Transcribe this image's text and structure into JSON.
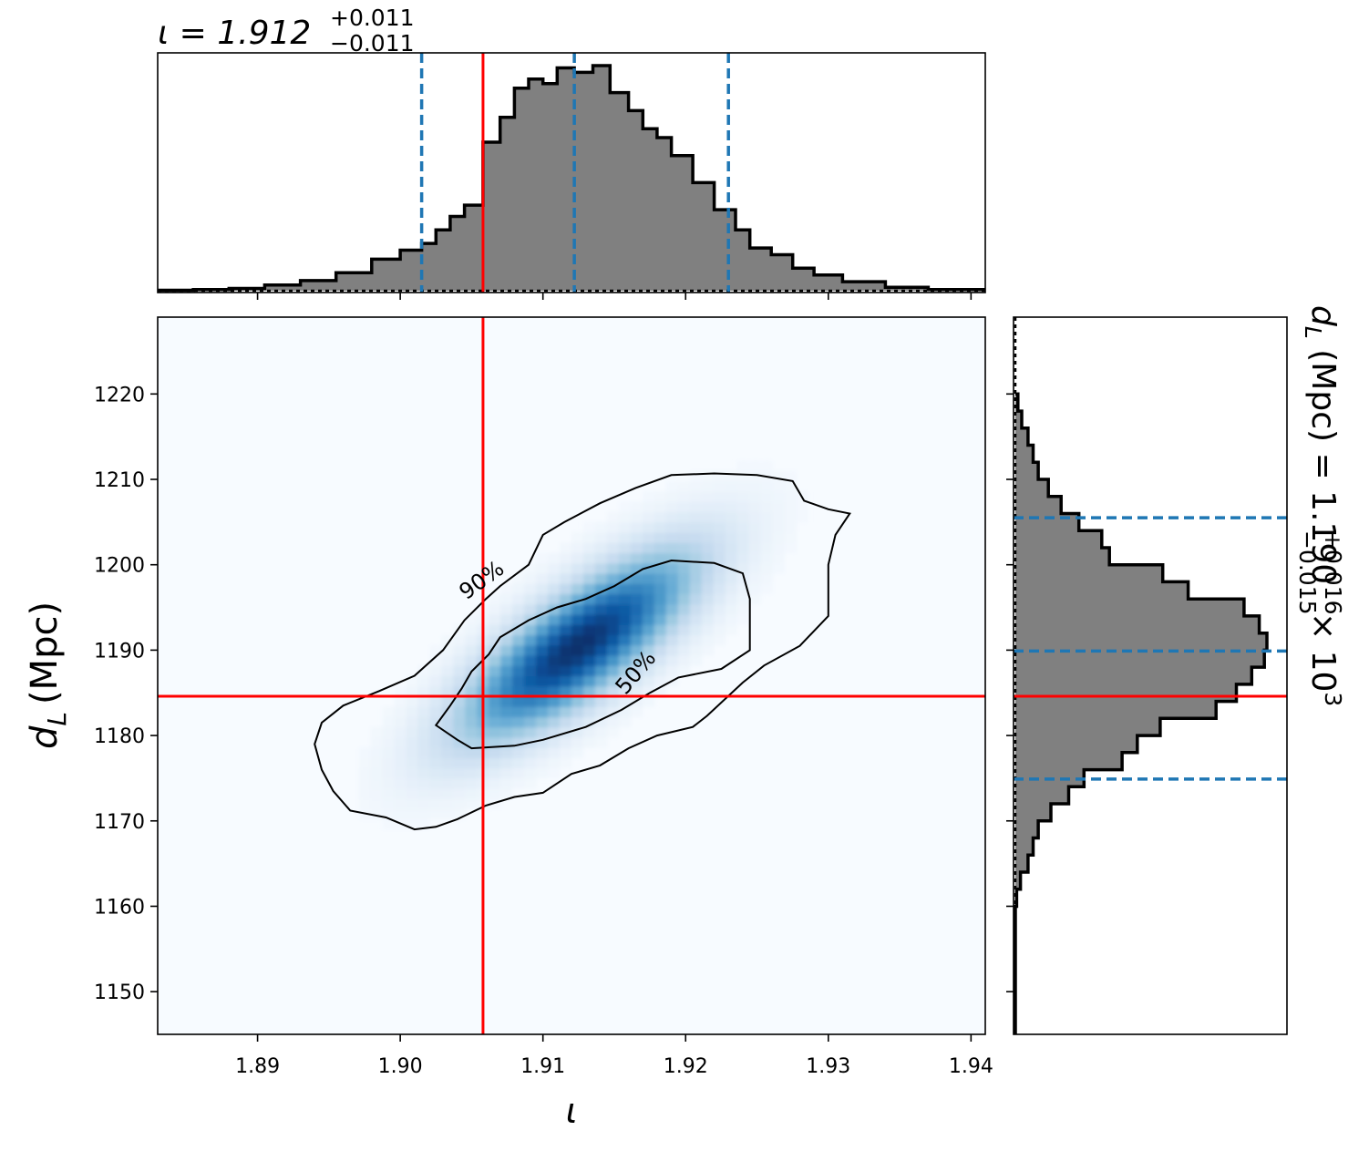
{
  "chart_data": [
    {
      "type": "heatmap",
      "panel": "joint",
      "xlabel": "ι",
      "ylabel_main": "d",
      "ylabel_sub": "L",
      "ylabel_unit": "(Mpc)",
      "xlim": [
        1.883,
        1.941
      ],
      "ylim": [
        1145,
        1229
      ],
      "x_ticks": [
        1.89,
        1.9,
        1.91,
        1.92,
        1.93,
        1.94
      ],
      "x_tick_labels": [
        "1.89",
        "1.90",
        "1.91",
        "1.92",
        "1.93",
        "1.94"
      ],
      "y_ticks": [
        1150,
        1160,
        1170,
        1180,
        1190,
        1200,
        1210,
        1220
      ],
      "y_tick_labels": [
        "1150",
        "1160",
        "1170",
        "1180",
        "1190",
        "1200",
        "1210",
        "1220"
      ],
      "density_peak": {
        "x": 1.9125,
        "y": 1190.5
      },
      "colormap": "Blues",
      "contour_labels": [
        "90%",
        "50%"
      ],
      "contour_50": [
        [
          1.9225,
          1187.8
        ],
        [
          1.9195,
          1186.8
        ],
        [
          1.9175,
          1185.0
        ],
        [
          1.9155,
          1183.0
        ],
        [
          1.913,
          1181.0
        ],
        [
          1.91,
          1179.5
        ],
        [
          1.908,
          1178.8
        ],
        [
          1.905,
          1178.5
        ],
        [
          1.904,
          1179.5
        ],
        [
          1.9025,
          1181.2
        ],
        [
          1.9035,
          1183.5
        ],
        [
          1.9043,
          1185.5
        ],
        [
          1.905,
          1187.5
        ],
        [
          1.9062,
          1189.5
        ],
        [
          1.907,
          1191.5
        ],
        [
          1.909,
          1193.5
        ],
        [
          1.911,
          1195.0
        ],
        [
          1.913,
          1196.0
        ],
        [
          1.915,
          1197.5
        ],
        [
          1.917,
          1199.5
        ],
        [
          1.919,
          1200.5
        ],
        [
          1.922,
          1200.2
        ],
        [
          1.924,
          1199.0
        ],
        [
          1.9245,
          1196.0
        ],
        [
          1.9245,
          1193.0
        ],
        [
          1.9245,
          1190.0
        ]
      ],
      "contour_90": [
        [
          1.93,
          1194.0
        ],
        [
          1.928,
          1190.5
        ],
        [
          1.9255,
          1188.2
        ],
        [
          1.924,
          1186.2
        ],
        [
          1.9215,
          1182.3
        ],
        [
          1.9205,
          1181.0
        ],
        [
          1.918,
          1180.0
        ],
        [
          1.916,
          1178.5
        ],
        [
          1.914,
          1176.5
        ],
        [
          1.912,
          1175.5
        ],
        [
          1.91,
          1173.3
        ],
        [
          1.908,
          1172.8
        ],
        [
          1.906,
          1171.8
        ],
        [
          1.904,
          1170.2
        ],
        [
          1.9025,
          1169.3
        ],
        [
          1.901,
          1169.0
        ],
        [
          1.899,
          1170.4
        ],
        [
          1.8965,
          1171.2
        ],
        [
          1.8953,
          1173.5
        ],
        [
          1.8945,
          1176.0
        ],
        [
          1.894,
          1179.0
        ],
        [
          1.8945,
          1181.5
        ],
        [
          1.896,
          1183.5
        ],
        [
          1.8985,
          1185.2
        ],
        [
          1.901,
          1187.0
        ],
        [
          1.903,
          1190.0
        ],
        [
          1.9045,
          1193.5
        ],
        [
          1.906,
          1196.0
        ],
        [
          1.907,
          1197.5
        ],
        [
          1.909,
          1200.0
        ],
        [
          1.91,
          1203.5
        ],
        [
          1.9115,
          1205.0
        ],
        [
          1.914,
          1207.2
        ],
        [
          1.9165,
          1209.0
        ],
        [
          1.919,
          1210.5
        ],
        [
          1.922,
          1210.7
        ],
        [
          1.925,
          1210.5
        ],
        [
          1.9275,
          1209.8
        ],
        [
          1.9283,
          1207.5
        ],
        [
          1.93,
          1206.5
        ],
        [
          1.9315,
          1206.0
        ],
        [
          1.9305,
          1203.5
        ],
        [
          1.93,
          1200.0
        ],
        [
          1.93,
          1197.0
        ]
      ],
      "truth": {
        "x": 1.9058,
        "y": 1184.6
      },
      "truth_color": "#ff0000",
      "contour_color": "#000000"
    },
    {
      "type": "bar",
      "panel": "marginal-x",
      "title_main": "ι = 1.912",
      "title_sup": "+0.011",
      "title_sub": "−0.011",
      "xlim": [
        1.883,
        1.941
      ],
      "bin_edges": [
        1.883,
        1.8855,
        1.888,
        1.8905,
        1.893,
        1.8955,
        1.898,
        1.9,
        1.9015,
        1.9025,
        1.9035,
        1.9045,
        1.9058,
        1.907,
        1.908,
        1.909,
        1.91,
        1.911,
        1.9122,
        1.9135,
        1.9147,
        1.916,
        1.917,
        1.918,
        1.919,
        1.9205,
        1.922,
        1.9235,
        1.9245,
        1.926,
        1.9275,
        1.929,
        1.931,
        1.934,
        1.937,
        1.941
      ],
      "values": [
        0.2,
        0.5,
        1.0,
        2.5,
        4.5,
        8.0,
        14.0,
        18.0,
        21.0,
        27.0,
        33.0,
        38.0,
        66.0,
        77.0,
        90.0,
        94.0,
        92.0,
        99.0,
        97.0,
        100.0,
        88.0,
        80.0,
        72.0,
        68.0,
        60.0,
        48.0,
        36.0,
        27.0,
        19.0,
        16.0,
        10.0,
        7.0,
        4.0,
        1.5,
        0.5
      ],
      "quantiles": [
        1.9015,
        1.9122,
        1.923
      ],
      "quantile_color": "#1f77b4",
      "fill_color": "#808080",
      "truth": 1.9058
    },
    {
      "type": "bar",
      "panel": "marginal-y",
      "title_main": "d",
      "title_sub_italic": "L",
      "title_rest": " (Mpc) = 1.190",
      "title_sup": "+0.016",
      "title_sub": "−0.015",
      "title_tail_main": " × 10",
      "title_tail_sup": "3",
      "ylim": [
        1145,
        1229
      ],
      "bin_edges": [
        1145.0,
        1160.0,
        1162.0,
        1164.0,
        1166.0,
        1168.0,
        1170.0,
        1172.0,
        1174.0,
        1176.0,
        1178.0,
        1180.0,
        1182.0,
        1184.0,
        1186.0,
        1188.0,
        1190.0,
        1192.0,
        1194.0,
        1196.0,
        1198.0,
        1200.0,
        1202.0,
        1204.0,
        1206.0,
        1208.0,
        1210.0,
        1212.0,
        1214.0,
        1216.0,
        1218.0,
        1220.0
      ],
      "values": [
        0,
        0.5,
        2,
        5,
        7,
        9,
        14,
        21,
        27,
        42,
        48,
        57,
        79,
        87,
        93,
        98,
        99,
        96,
        90,
        68,
        58,
        37,
        34,
        25,
        18,
        13,
        9,
        7,
        5,
        2.5,
        1
      ],
      "quantiles": [
        1174.9,
        1189.9,
        1205.5
      ],
      "quantile_color": "#1f77b4",
      "fill_color": "#808080",
      "truth": 1184.6
    }
  ]
}
